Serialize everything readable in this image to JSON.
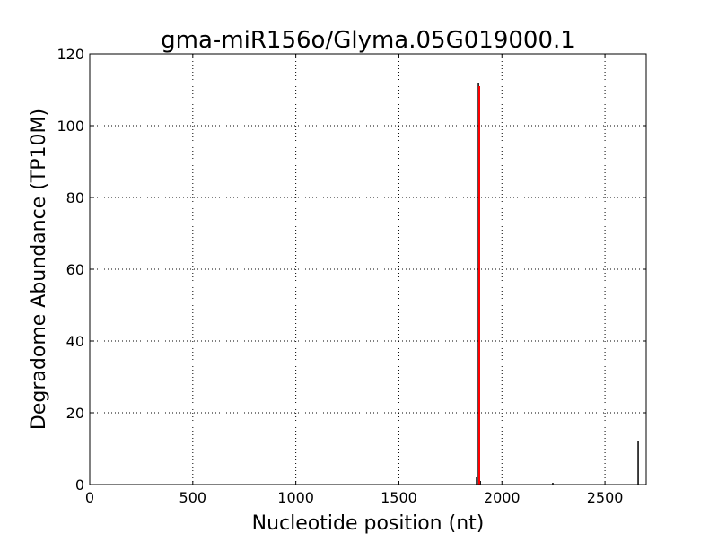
{
  "chart_data": {
    "type": "bar",
    "title": "gma-miR156o/Glyma.05G019000.1",
    "xlabel": "Nucleotide position (nt)",
    "ylabel": "Degradome Abundance (TP10M)",
    "xlim": [
      0,
      2700
    ],
    "ylim": [
      0,
      120
    ],
    "xticks": [
      0,
      500,
      1000,
      1500,
      2000,
      2500
    ],
    "yticks": [
      0,
      20,
      40,
      60,
      80,
      100,
      120
    ],
    "grid": true,
    "series": [
      {
        "color": "#000000",
        "points": [
          {
            "x": 1877,
            "y": 2
          },
          {
            "x": 1886,
            "y": 111.8
          },
          {
            "x": 1895,
            "y": 1
          },
          {
            "x": 2247,
            "y": 0.5
          },
          {
            "x": 2661,
            "y": 12
          }
        ]
      }
    ],
    "highlight": {
      "x": 1890,
      "y": 111,
      "color": "#ff0000"
    }
  }
}
